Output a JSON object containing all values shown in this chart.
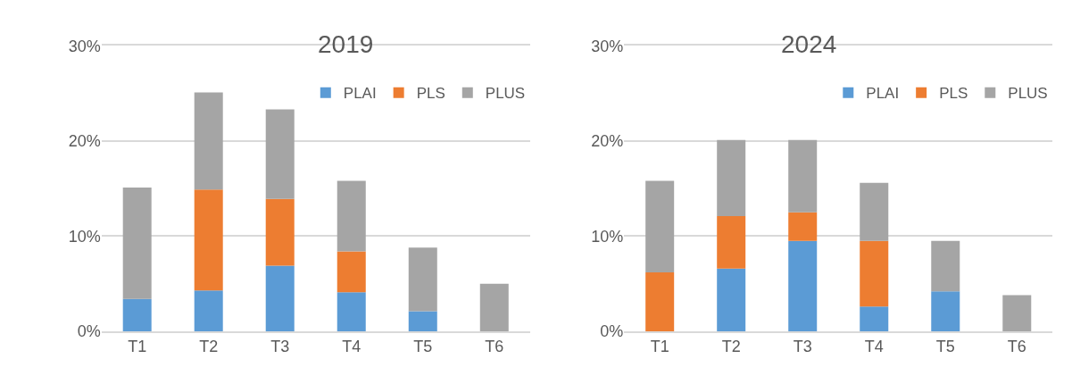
{
  "chart_data": [
    {
      "type": "bar",
      "title": "2019",
      "stacked": true,
      "categories": [
        "T1",
        "T2",
        "T3",
        "T4",
        "T5",
        "T6"
      ],
      "series": [
        {
          "name": "PLAI",
          "color": "#5b9bd5",
          "values": [
            3.4,
            4.3,
            6.9,
            4.1,
            2.1,
            0
          ]
        },
        {
          "name": "PLS",
          "color": "#ed7d31",
          "values": [
            0,
            10.6,
            7.0,
            4.3,
            0,
            0
          ]
        },
        {
          "name": "PLUS",
          "color": "#a5a5a5",
          "values": [
            11.7,
            10.2,
            9.4,
            7.4,
            6.7,
            5.0
          ]
        }
      ],
      "ylim": [
        0,
        30
      ],
      "yticks": [
        {
          "value": 0,
          "label": "0%"
        },
        {
          "value": 10,
          "label": "10%"
        },
        {
          "value": 20,
          "label": "20%"
        },
        {
          "value": 30,
          "label": "30%"
        }
      ],
      "grid": "y",
      "legend": "top right"
    },
    {
      "type": "bar",
      "title": "2024",
      "stacked": true,
      "categories": [
        "T1",
        "T2",
        "T3",
        "T4",
        "T5",
        "T6"
      ],
      "series": [
        {
          "name": "PLAI",
          "color": "#5b9bd5",
          "values": [
            0,
            6.6,
            9.5,
            2.6,
            4.2,
            0
          ]
        },
        {
          "name": "PLS",
          "color": "#ed7d31",
          "values": [
            6.2,
            5.5,
            3.0,
            6.9,
            0,
            0
          ]
        },
        {
          "name": "PLUS",
          "color": "#a5a5a5",
          "values": [
            9.6,
            8.0,
            7.6,
            6.1,
            5.3,
            3.8
          ]
        }
      ],
      "ylim": [
        0,
        30
      ],
      "yticks": [
        {
          "value": 0,
          "label": "0%"
        },
        {
          "value": 10,
          "label": "10%"
        },
        {
          "value": 20,
          "label": "20%"
        },
        {
          "value": 30,
          "label": "30%"
        }
      ],
      "grid": "y",
      "legend": "top right"
    }
  ]
}
